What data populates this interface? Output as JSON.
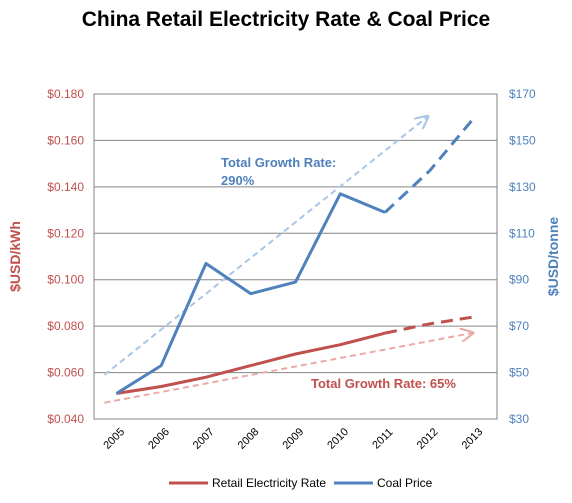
{
  "chart_data": {
    "type": "line",
    "title": "China Retail Electricity Rate & Coal Price",
    "x": [
      "2005",
      "2006",
      "2007",
      "2008",
      "2009",
      "2010",
      "2011",
      "2012",
      "2013"
    ],
    "y_left": {
      "label": "$USD/kWh",
      "lim": [
        0.04,
        0.18
      ],
      "ticks": [
        "$0.040",
        "$0.060",
        "$0.080",
        "$0.100",
        "$0.120",
        "$0.140",
        "$0.160",
        "$0.180"
      ],
      "tick_values": [
        0.04,
        0.06,
        0.08,
        0.1,
        0.12,
        0.14,
        0.16,
        0.18
      ]
    },
    "y_right": {
      "label": "$USD/tonne",
      "lim": [
        30,
        170
      ],
      "ticks": [
        "$30",
        "$50",
        "$70",
        "$90",
        "$110",
        "$130",
        "$150",
        "$170"
      ],
      "tick_values": [
        30,
        50,
        70,
        90,
        110,
        130,
        150,
        170
      ]
    },
    "series": [
      {
        "name": "Retail Electricity Rate",
        "axis": "left",
        "color": "#c0504d",
        "values": [
          0.051,
          0.054,
          0.058,
          0.063,
          0.068,
          0.072,
          0.077,
          0.081,
          0.084
        ],
        "projected_from": "2011"
      },
      {
        "name": "Coal Price",
        "axis": "right",
        "color": "#4f81bd",
        "values": [
          41,
          53,
          97,
          84,
          89,
          127,
          119,
          137,
          160
        ],
        "projected_from": "2011"
      }
    ],
    "trend_arrows": [
      {
        "axis": "right",
        "color": "#a9c5e6",
        "from": {
          "x": "2005",
          "y": 49
        },
        "to": {
          "x": "2012",
          "y": 160
        }
      },
      {
        "axis": "left",
        "color": "#eaaaa8",
        "from": {
          "x": "2005",
          "y": 0.047
        },
        "to": {
          "x": "2013",
          "y": 0.077
        }
      }
    ],
    "annotations": [
      {
        "text_line1": "Total Growth Rate:",
        "text_line2": "290%",
        "color": "#4f81bd"
      },
      {
        "text": "Total Growth Rate: 65%",
        "color": "#c0504d"
      }
    ],
    "grid": "horizontal",
    "legend": "bottom"
  }
}
